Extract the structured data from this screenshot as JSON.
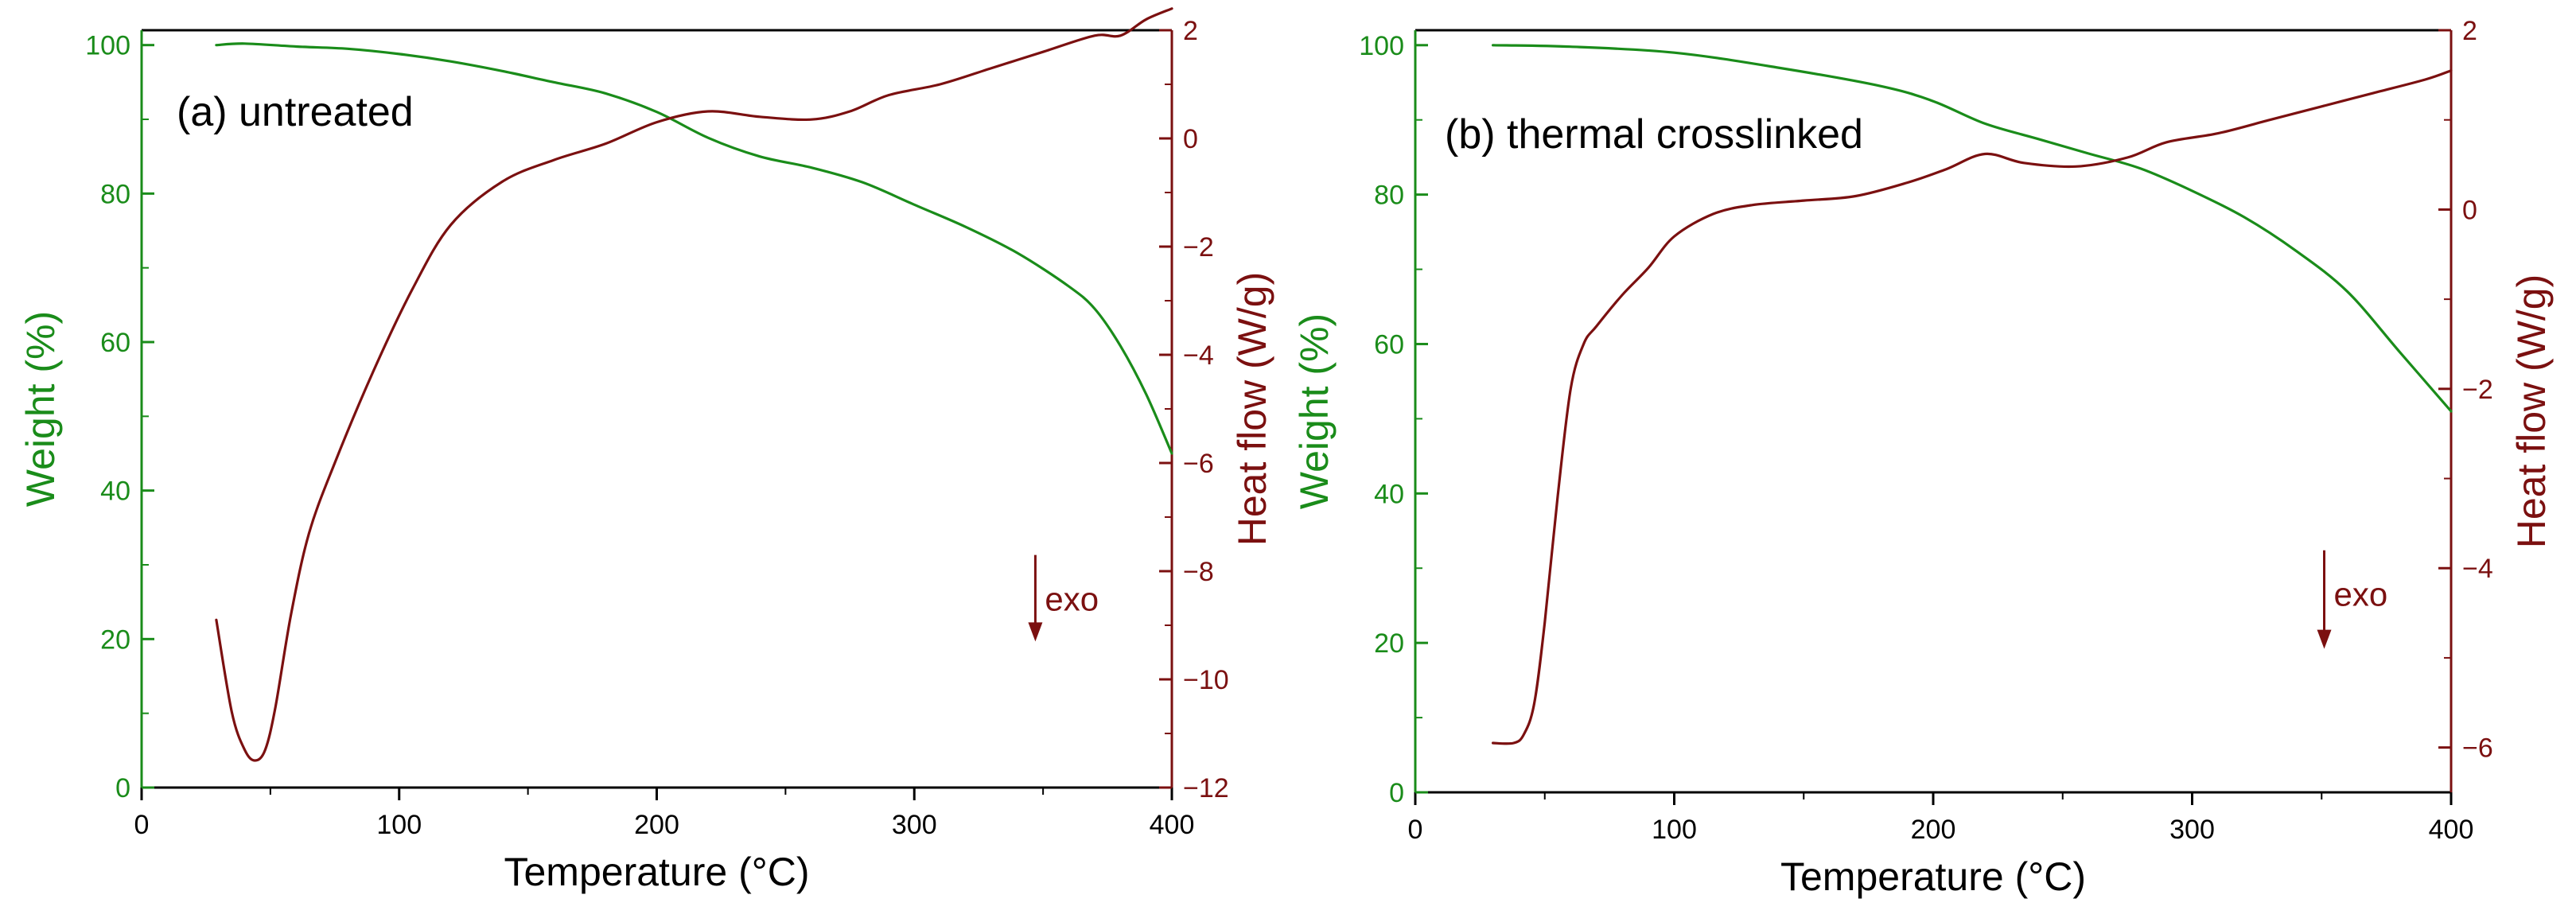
{
  "colors": {
    "weight": "#1a8c1a",
    "heat_flow": "#7b1010",
    "frame": "#000000"
  },
  "chart_data": [
    {
      "type": "line",
      "title": "(a) untreated",
      "xlabel": "Temperature (°C)",
      "ylabel_left": "Weight (%)",
      "ylabel_right": "Heat flow (W/g)",
      "xlim": [
        0,
        400
      ],
      "ylim_left": [
        0,
        102
      ],
      "ylim_right": [
        -12,
        2
      ],
      "x_ticks": [
        0,
        100,
        200,
        300,
        400
      ],
      "y_ticks_left": [
        0,
        20,
        40,
        60,
        80,
        100
      ],
      "y_ticks_right": [
        -12,
        -10,
        -8,
        -6,
        -4,
        -2,
        0,
        2
      ],
      "annotation": "exo",
      "annotation_pos": {
        "x": 347,
        "y_right": -7.7,
        "arrow_to_y_right": -9.3
      },
      "series": [
        {
          "name": "Weight (%)",
          "axis": "left",
          "x": [
            29,
            40,
            60,
            80,
            100,
            120,
            140,
            160,
            180,
            200,
            220,
            240,
            260,
            280,
            300,
            320,
            340,
            360,
            370,
            380,
            390,
            400
          ],
          "values": [
            100,
            100.2,
            99.8,
            99.5,
            98.8,
            97.8,
            96.5,
            95,
            93.5,
            91,
            87.5,
            85,
            83.5,
            81.5,
            78.5,
            75.5,
            72,
            67.5,
            64.5,
            59.5,
            53,
            45
          ]
        },
        {
          "name": "Heat flow (W/g)",
          "axis": "right",
          "x": [
            29,
            35,
            40,
            44,
            48,
            52,
            58,
            65,
            75,
            90,
            105,
            120,
            140,
            160,
            180,
            200,
            220,
            240,
            260,
            275,
            290,
            310,
            330,
            350,
            370,
            380,
            390,
            400
          ],
          "values": [
            -8.9,
            -10.6,
            -11.3,
            -11.5,
            -11.3,
            -10.5,
            -8.8,
            -7.3,
            -6,
            -4.3,
            -2.8,
            -1.6,
            -0.8,
            -0.4,
            -0.1,
            0.3,
            0.5,
            0.4,
            0.35,
            0.5,
            0.8,
            1.0,
            1.3,
            1.6,
            1.9,
            1.9,
            2.2,
            2.4
          ]
        }
      ]
    },
    {
      "type": "line",
      "title": "(b) thermal crosslinked",
      "xlabel": "Temperature (°C)",
      "ylabel_left": "Weight (%)",
      "ylabel_right": "Heat flow (W/g)",
      "xlim": [
        0,
        400
      ],
      "ylim_left": [
        0,
        102
      ],
      "ylim_right": [
        -6.5,
        2
      ],
      "x_ticks": [
        0,
        100,
        200,
        300,
        400
      ],
      "y_ticks_left": [
        0,
        20,
        40,
        60,
        80,
        100
      ],
      "y_ticks_right": [
        -6,
        -4,
        -2,
        0,
        2
      ],
      "annotation": "exo",
      "annotation_pos": {
        "x": 351,
        "y_right": -3.8,
        "arrow_to_y_right": -4.9
      },
      "series": [
        {
          "name": "Weight (%)",
          "axis": "left",
          "x": [
            30,
            60,
            100,
            140,
            180,
            200,
            220,
            240,
            260,
            280,
            300,
            320,
            340,
            360,
            380,
            400
          ],
          "values": [
            100,
            99.8,
            99,
            97,
            94.5,
            92.5,
            89.5,
            87.5,
            85.5,
            83.5,
            80.5,
            77,
            72.5,
            67,
            59,
            51
          ]
        },
        {
          "name": "Heat flow (W/g)",
          "axis": "right",
          "x": [
            30,
            38,
            42,
            46,
            50,
            55,
            60,
            65,
            70,
            80,
            90,
            100,
            115,
            130,
            150,
            170,
            190,
            205,
            220,
            235,
            255,
            275,
            290,
            310,
            330,
            350,
            370,
            390,
            400
          ],
          "values": [
            -5.95,
            -5.95,
            -5.85,
            -5.5,
            -4.6,
            -3.2,
            -2.0,
            -1.5,
            -1.3,
            -0.95,
            -0.65,
            -0.3,
            -0.05,
            0.05,
            0.1,
            0.15,
            0.3,
            0.45,
            0.62,
            0.52,
            0.48,
            0.58,
            0.75,
            0.85,
            1.0,
            1.15,
            1.3,
            1.45,
            1.55
          ]
        }
      ]
    }
  ]
}
